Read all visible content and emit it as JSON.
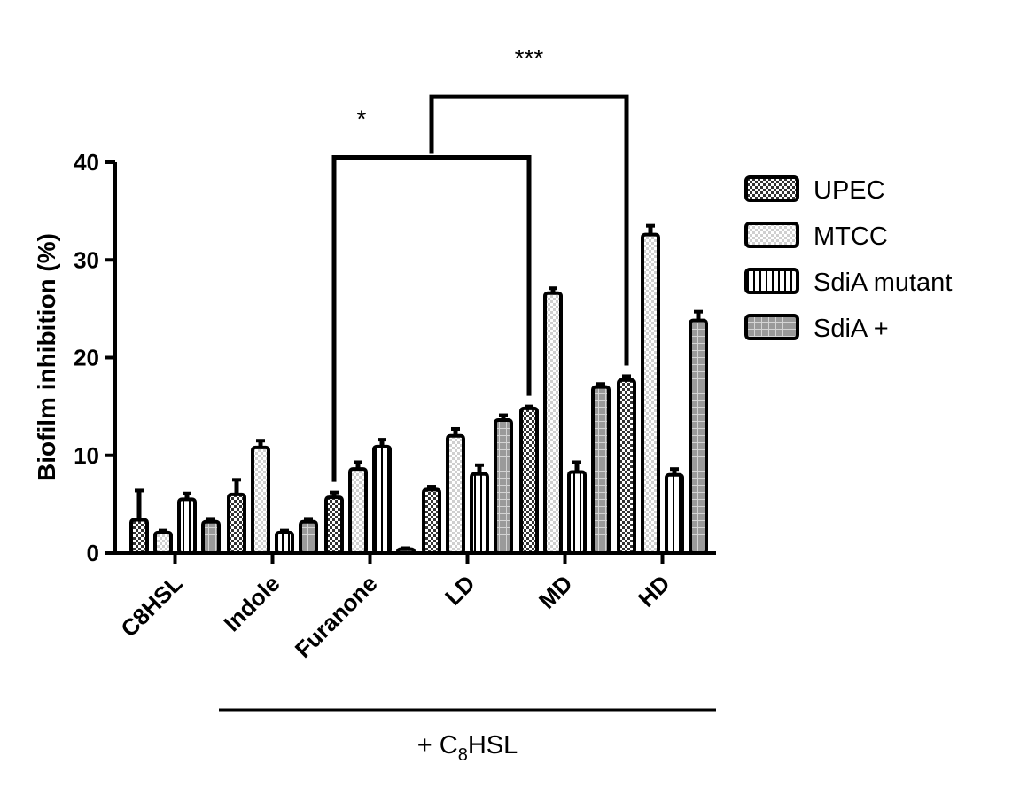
{
  "chart_data": {
    "type": "bar",
    "title": "",
    "xlabel": "",
    "ylabel": "Biofilm inhibition (%)",
    "ylim": [
      0,
      40
    ],
    "yticks": [
      "0",
      "10",
      "20",
      "30",
      "40"
    ],
    "grid": false,
    "legend_position": "right",
    "categories": [
      "C8HSL",
      "Indole",
      "Furanone",
      "LD",
      "MD",
      "HD"
    ],
    "series": [
      {
        "name": "UPEC",
        "pattern": "dense-check",
        "values": [
          3.4,
          6.0,
          5.7,
          6.5,
          14.8,
          17.7
        ],
        "errors": [
          3.0,
          1.5,
          0.5,
          0.3,
          0.2,
          0.4
        ]
      },
      {
        "name": "MTCC",
        "pattern": "light-check",
        "values": [
          2.1,
          10.8,
          8.6,
          12.0,
          26.6,
          32.6
        ],
        "errors": [
          0.2,
          0.7,
          0.7,
          0.7,
          0.5,
          0.9
        ]
      },
      {
        "name": "SdiA mutant",
        "pattern": "vertical-lines",
        "values": [
          5.5,
          2.1,
          10.9,
          8.1,
          8.3,
          8.0
        ],
        "errors": [
          0.6,
          0.2,
          0.7,
          0.9,
          1.0,
          0.6
        ]
      },
      {
        "name": "SdiA +",
        "pattern": "gray-grid",
        "values": [
          3.2,
          3.2,
          0.4,
          13.6,
          17.0,
          23.8
        ],
        "errors": [
          0.3,
          0.3,
          0.1,
          0.5,
          0.3,
          0.9
        ]
      }
    ],
    "group_bracket": {
      "label_main": "+ C",
      "label_sub": "8",
      "label_end": "HSL",
      "from_category": "Indole",
      "to_category": "HD"
    },
    "significance": [
      {
        "label": "*",
        "from": {
          "category": "Furanone",
          "series": "UPEC"
        },
        "to": {
          "category": "MD",
          "series": "UPEC"
        },
        "level": 40.5
      },
      {
        "label": "***",
        "from": {
          "category": "Furanone",
          "series": "UPEC"
        },
        "to": {
          "category": "HD",
          "series": "UPEC"
        },
        "level": 46.7
      }
    ],
    "colors": {
      "ink": "#000000",
      "check_dark": "#333333",
      "check_light": "#cfcfcf",
      "gray_fill": "#9a9a9a",
      "gray_line": "#d4d4d4",
      "white": "#ffffff"
    }
  }
}
